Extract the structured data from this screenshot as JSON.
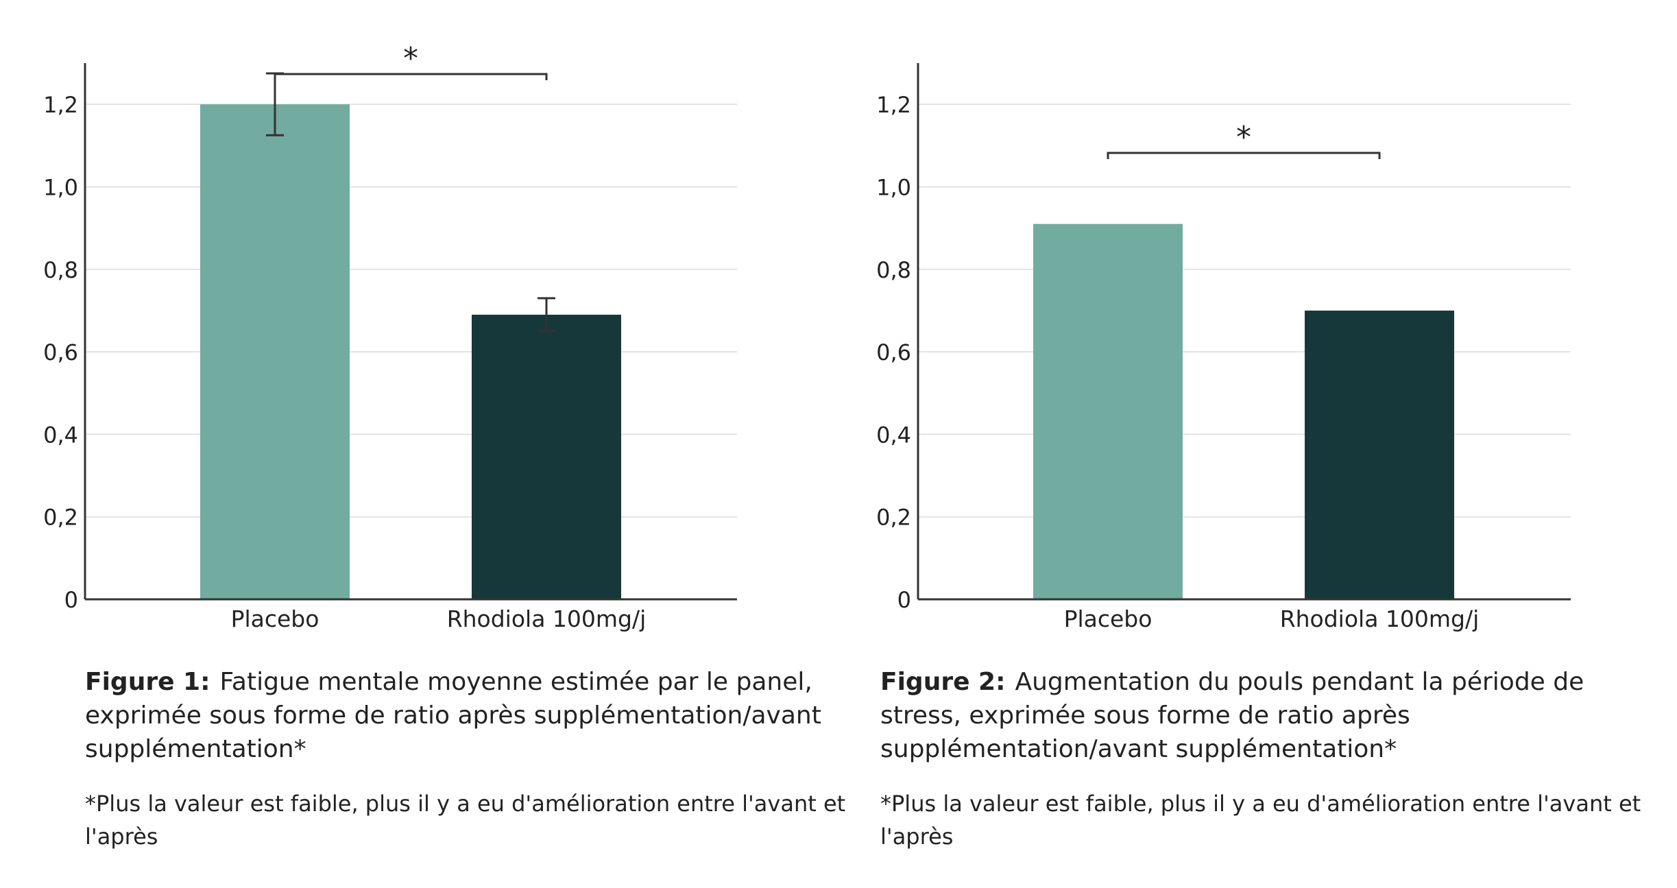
{
  "colors": {
    "placebo": "#72ab9f",
    "rhodiola": "#17383a",
    "axis": "#333333",
    "grid": "#e2e2e2"
  },
  "chart_data": [
    {
      "type": "bar",
      "categories": [
        "Placebo",
        "Rhodiola 100mg/j"
      ],
      "values": [
        1.2,
        0.69
      ],
      "error_bars": [
        [
          1.125,
          1.275
        ],
        [
          0.65,
          0.73
        ]
      ],
      "ylim": [
        0,
        1.3
      ],
      "yticks": [
        "0",
        "0,2",
        "0,4",
        "0,6",
        "0,8",
        "1,0",
        "1,2"
      ],
      "grid": true,
      "significance": {
        "label": "*",
        "between": [
          0,
          1
        ]
      },
      "title": "",
      "xlabel": "",
      "ylabel": ""
    },
    {
      "type": "bar",
      "categories": [
        "Placebo",
        "Rhodiola 100mg/j"
      ],
      "values": [
        0.91,
        0.7
      ],
      "ylim": [
        0,
        1.3
      ],
      "yticks": [
        "0",
        "0,2",
        "0,4",
        "0,6",
        "0,8",
        "1,0",
        "1,2"
      ],
      "grid": true,
      "significance": {
        "label": "*",
        "between": [
          0,
          1
        ]
      },
      "title": "",
      "xlabel": "",
      "ylabel": ""
    }
  ],
  "captions": [
    {
      "figure_label": "Figure 1:",
      "text": "Fatigue mentale moyenne estimée par le panel, exprimée sous forme de ratio après supplémentation/avant supplémentation*",
      "note": "*Plus la valeur est faible, plus il y a eu d'amélioration entre l'avant et l'après"
    },
    {
      "figure_label": "Figure 2:",
      "text": "Augmentation du pouls pendant la période de stress, exprimée sous forme de ratio après supplémentation/avant supplémentation*",
      "note": "*Plus la valeur est faible, plus il y a eu d'amélioration entre l'avant et l'après"
    }
  ]
}
